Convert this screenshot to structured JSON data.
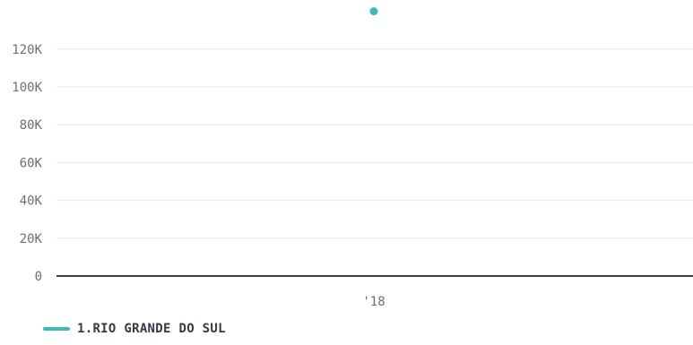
{
  "chart_data": {
    "type": "line",
    "title": "",
    "xlabel": "",
    "ylabel": "",
    "categories": [
      "'18"
    ],
    "ylim": [
      0,
      130000
    ],
    "y_ticks": [
      0,
      20000,
      40000,
      60000,
      80000,
      100000,
      120000
    ],
    "y_tick_labels": [
      "0",
      "20K",
      "40K",
      "60K",
      "80K",
      "100K",
      "120K"
    ],
    "grid": true,
    "legend_position": "bottom-left",
    "series": [
      {
        "name": "1.RIO GRANDE DO SUL",
        "color": "#3fb8b8",
        "values": [
          140000
        ]
      }
    ]
  }
}
